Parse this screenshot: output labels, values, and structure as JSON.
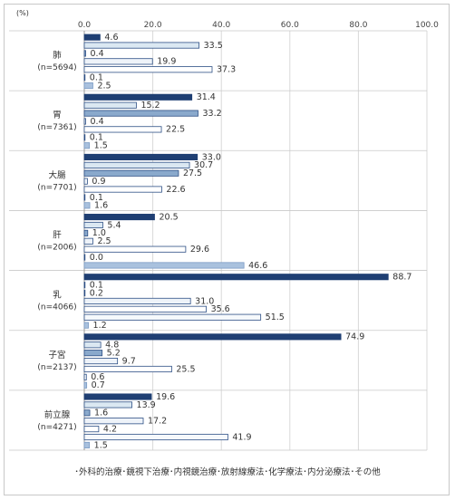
{
  "chart_data": {
    "type": "bar",
    "orientation": "horizontal",
    "unit_label": "(%)",
    "xlim": [
      0,
      100
    ],
    "x_ticks": [
      "0.0",
      "20.0",
      "40.0",
      "60.0",
      "80.0",
      "100.0"
    ],
    "x_tick_values": [
      0,
      20,
      40,
      60,
      80,
      100
    ],
    "grid": true,
    "legend_position": "bottom",
    "series": [
      {
        "name": "外科的治療",
        "color": "#1f3f73",
        "border": "#1f3f73"
      },
      {
        "name": "鏡視下治療",
        "color": "#dbe8f2",
        "border": "#2d4f85"
      },
      {
        "name": "内視鏡治療",
        "color": "#8aa9cc",
        "border": "#2d4f85"
      },
      {
        "name": "放射線療法",
        "color": "#eef3f9",
        "border": "#2d4f85"
      },
      {
        "name": "化学療法",
        "color": "#ffffff",
        "border": "#2d4f85"
      },
      {
        "name": "内分泌療法",
        "color": "#f6f9fc",
        "border": "#2d4f85"
      },
      {
        "name": "その他",
        "color": "#a9c1de",
        "border": "#7b9bc4"
      }
    ],
    "categories": [
      {
        "name": "肺",
        "n": "(n=5694)",
        "values": [
          "4.6",
          "33.5",
          "0.4",
          "19.9",
          "37.3",
          "0.1",
          "2.5"
        ]
      },
      {
        "name": "胃",
        "n": "(n=7361)",
        "values": [
          "31.4",
          "15.2",
          "33.2",
          "0.4",
          "22.5",
          "0.1",
          "1.5"
        ]
      },
      {
        "name": "大腸",
        "n": "(n=7701)",
        "values": [
          "33.0",
          "30.7",
          "27.5",
          "0.9",
          "22.6",
          "0.1",
          "1.6"
        ]
      },
      {
        "name": "肝",
        "n": "(n=2006)",
        "values": [
          "20.5",
          "5.4",
          "1.0",
          "2.5",
          "29.6",
          "0.0",
          "46.6"
        ]
      },
      {
        "name": "乳",
        "n": "(n=4066)",
        "values": [
          "88.7",
          "0.1",
          "0.2",
          "31.0",
          "35.6",
          "51.5",
          "1.2"
        ]
      },
      {
        "name": "子宮",
        "n": "(n=2137)",
        "values": [
          "74.9",
          "4.8",
          "5.2",
          "9.7",
          "25.5",
          "0.6",
          "0.7"
        ]
      },
      {
        "name": "前立腺",
        "n": "(n=4271)",
        "values": [
          "19.6",
          "13.9",
          "1.6",
          "17.2",
          "4.2",
          "41.9",
          "1.5"
        ]
      }
    ]
  }
}
